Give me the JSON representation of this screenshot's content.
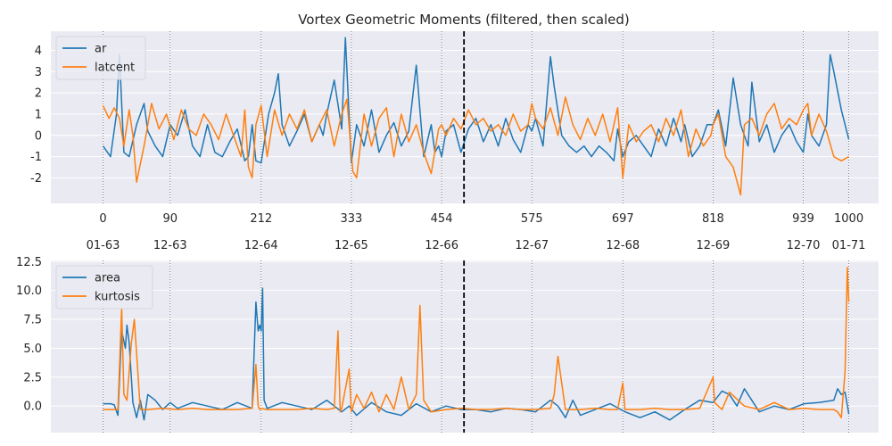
{
  "chart_data": [
    {
      "type": "line",
      "title": "Vortex Geometric Moments (filtered, then scaled)",
      "xlim": [
        -70,
        1040
      ],
      "ylim": [
        -3.2,
        4.9
      ],
      "yticks": [
        -2,
        -1,
        0,
        1,
        2,
        3,
        4
      ],
      "xticks": [
        {
          "x": 0,
          "label": "0"
        },
        {
          "x": 90,
          "label": "90"
        },
        {
          "x": 212,
          "label": "212"
        },
        {
          "x": 333,
          "label": "333"
        },
        {
          "x": 454,
          "label": "454"
        },
        {
          "x": 575,
          "label": "575"
        },
        {
          "x": 697,
          "label": "697"
        },
        {
          "x": 818,
          "label": "818"
        },
        {
          "x": 939,
          "label": "939"
        },
        {
          "x": 1000,
          "label": "1000"
        }
      ],
      "vline_dashed_x": 484,
      "grid": true,
      "legend_position": "upper-left",
      "series": [
        {
          "name": "ar",
          "color": "#1f77b4",
          "x": [
            0,
            10,
            18,
            22,
            28,
            35,
            45,
            55,
            60,
            70,
            80,
            90,
            100,
            110,
            120,
            130,
            140,
            150,
            160,
            170,
            180,
            190,
            195,
            200,
            205,
            212,
            222,
            230,
            235,
            240,
            250,
            260,
            270,
            280,
            290,
            295,
            300,
            310,
            320,
            325,
            333,
            340,
            350,
            360,
            370,
            380,
            390,
            400,
            410,
            420,
            430,
            440,
            445,
            450,
            454,
            460,
            470,
            480,
            490,
            500,
            510,
            520,
            530,
            540,
            550,
            560,
            570,
            575,
            580,
            590,
            600,
            605,
            615,
            625,
            635,
            645,
            655,
            665,
            675,
            685,
            690,
            697,
            705,
            715,
            725,
            735,
            745,
            755,
            765,
            775,
            780,
            790,
            800,
            810,
            818,
            825,
            835,
            845,
            855,
            865,
            870,
            880,
            890,
            900,
            910,
            920,
            930,
            939,
            945,
            950,
            960,
            970,
            975,
            980,
            990,
            1000
          ],
          "y": [
            -0.5,
            -1.0,
            1.0,
            3.8,
            -0.8,
            -1.0,
            0.5,
            1.5,
            0.2,
            -0.5,
            -1.0,
            0.5,
            0.0,
            1.2,
            -0.5,
            -1.0,
            0.5,
            -0.8,
            -1.0,
            -0.3,
            0.3,
            -1.2,
            -1.0,
            0.5,
            -1.2,
            -1.3,
            1.0,
            2.0,
            2.9,
            0.5,
            -0.5,
            0.2,
            1.0,
            -0.3,
            0.5,
            0.0,
            1.0,
            2.6,
            0.3,
            4.6,
            -1.3,
            0.5,
            -0.5,
            1.2,
            -0.8,
            0.0,
            0.6,
            -0.5,
            0.2,
            3.3,
            -1.0,
            0.5,
            -0.8,
            -0.5,
            -1.0,
            0.2,
            0.5,
            -0.8,
            0.3,
            0.8,
            -0.3,
            0.5,
            -0.5,
            0.8,
            -0.2,
            -0.8,
            0.5,
            0.2,
            0.8,
            -0.5,
            3.7,
            2.3,
            0.0,
            -0.5,
            -0.8,
            -0.5,
            -1.0,
            -0.5,
            -0.8,
            -1.2,
            0.3,
            -1.0,
            -0.3,
            0.0,
            -0.5,
            -1.0,
            0.3,
            -0.5,
            0.8,
            -0.3,
            0.5,
            -1.0,
            -0.5,
            0.5,
            0.5,
            1.2,
            -0.5,
            2.7,
            0.5,
            -0.5,
            2.5,
            -0.3,
            0.5,
            -0.8,
            0.0,
            0.5,
            -0.3,
            -0.8,
            1.0,
            0.0,
            -0.5,
            0.5,
            3.8,
            3.0,
            1.2,
            -0.2
          ]
        },
        {
          "name": "latcent",
          "color": "#ff7f0e",
          "x": [
            0,
            8,
            15,
            22,
            28,
            35,
            40,
            45,
            55,
            65,
            75,
            85,
            95,
            105,
            115,
            125,
            135,
            145,
            155,
            165,
            175,
            185,
            190,
            195,
            200,
            205,
            212,
            220,
            230,
            240,
            250,
            260,
            270,
            280,
            290,
            300,
            310,
            320,
            327,
            335,
            340,
            350,
            360,
            370,
            380,
            390,
            400,
            410,
            420,
            430,
            440,
            450,
            454,
            460,
            470,
            480,
            490,
            500,
            510,
            520,
            530,
            540,
            550,
            560,
            570,
            575,
            580,
            590,
            600,
            610,
            620,
            630,
            640,
            650,
            660,
            670,
            680,
            690,
            697,
            705,
            715,
            725,
            735,
            745,
            755,
            765,
            775,
            785,
            795,
            805,
            815,
            818,
            825,
            835,
            845,
            855,
            860,
            870,
            880,
            890,
            900,
            910,
            920,
            930,
            939,
            945,
            950,
            960,
            970,
            980,
            990,
            1000
          ],
          "y": [
            1.4,
            0.8,
            1.3,
            0.8,
            -0.5,
            1.2,
            0.0,
            -2.2,
            -0.5,
            1.5,
            0.3,
            1.0,
            -0.2,
            1.2,
            0.3,
            0.0,
            1.0,
            0.5,
            -0.2,
            1.0,
            0.0,
            -1.0,
            1.2,
            -1.5,
            -2.0,
            0.5,
            1.4,
            -1.0,
            1.2,
            0.0,
            1.0,
            0.3,
            1.2,
            -0.3,
            0.5,
            1.2,
            -0.5,
            1.0,
            1.7,
            -1.7,
            -2.0,
            1.0,
            -0.5,
            0.8,
            1.3,
            -1.0,
            1.0,
            -0.3,
            0.5,
            -0.8,
            -1.8,
            0.3,
            0.5,
            0.0,
            0.8,
            0.3,
            1.2,
            0.5,
            0.8,
            0.2,
            0.5,
            0.0,
            1.0,
            0.2,
            0.5,
            1.5,
            0.8,
            0.3,
            1.3,
            0.0,
            1.8,
            0.5,
            -0.2,
            0.8,
            0.0,
            1.0,
            -0.3,
            1.3,
            -2.0,
            0.5,
            -0.3,
            0.2,
            0.5,
            -0.3,
            0.8,
            0.0,
            1.2,
            -1.0,
            0.3,
            -0.5,
            0.0,
            0.5,
            1.0,
            -1.0,
            -1.5,
            -2.8,
            0.5,
            0.8,
            0.0,
            1.0,
            1.5,
            0.3,
            0.8,
            0.5,
            1.2,
            1.5,
            0.0,
            1.0,
            0.2,
            -1.0,
            -1.2,
            -1.0
          ]
        }
      ]
    },
    {
      "type": "line",
      "xlim": [
        -70,
        1040
      ],
      "ylim": [
        -2.3,
        12.6
      ],
      "yticks": [
        0.0,
        2.5,
        5.0,
        7.5,
        10.0,
        12.5
      ],
      "ytick_labels": [
        "0.0",
        "2.5",
        "5.0",
        "7.5",
        "10.0",
        "12.5"
      ],
      "xticks": [
        {
          "x": 0,
          "label": "01-63"
        },
        {
          "x": 90,
          "label": "12-63"
        },
        {
          "x": 212,
          "label": "12-64"
        },
        {
          "x": 333,
          "label": "12-65"
        },
        {
          "x": 454,
          "label": "12-66"
        },
        {
          "x": 575,
          "label": "12-67"
        },
        {
          "x": 697,
          "label": "12-68"
        },
        {
          "x": 818,
          "label": "12-69"
        },
        {
          "x": 939,
          "label": "12-70"
        },
        {
          "x": 1000,
          "label": "01-71"
        }
      ],
      "vline_dashed_x": 484,
      "grid": true,
      "legend_position": "upper-left",
      "series": [
        {
          "name": "area",
          "color": "#1f77b4",
          "x": [
            0,
            10,
            15,
            20,
            25,
            30,
            32,
            35,
            40,
            45,
            50,
            55,
            60,
            70,
            80,
            90,
            100,
            120,
            140,
            160,
            180,
            200,
            205,
            208,
            210,
            212,
            214,
            216,
            220,
            240,
            260,
            280,
            300,
            320,
            330,
            340,
            360,
            380,
            400,
            420,
            440,
            460,
            480,
            500,
            520,
            540,
            560,
            580,
            600,
            610,
            620,
            630,
            640,
            660,
            680,
            700,
            720,
            740,
            760,
            780,
            800,
            818,
            830,
            840,
            850,
            860,
            880,
            900,
            920,
            940,
            960,
            980,
            985,
            990,
            995,
            1000
          ],
          "y": [
            0.2,
            0.2,
            0.1,
            -0.8,
            6.5,
            5.0,
            7.0,
            5.5,
            0.3,
            -1.0,
            0.5,
            -1.2,
            1.0,
            0.5,
            -0.3,
            0.3,
            -0.2,
            0.3,
            0.0,
            -0.3,
            0.3,
            -0.2,
            9.0,
            6.5,
            7.0,
            6.5,
            10.2,
            0.5,
            -0.2,
            0.3,
            0.0,
            -0.3,
            0.5,
            -0.5,
            0.0,
            -0.8,
            0.3,
            -0.5,
            -0.8,
            0.2,
            -0.5,
            0.0,
            -0.3,
            -0.3,
            -0.5,
            -0.2,
            -0.3,
            -0.5,
            0.5,
            0.0,
            -1.0,
            0.5,
            -0.8,
            -0.3,
            0.2,
            -0.5,
            -1.0,
            -0.5,
            -1.2,
            -0.3,
            0.5,
            0.3,
            1.3,
            1.0,
            0.0,
            1.5,
            -0.5,
            0.0,
            -0.3,
            0.2,
            0.3,
            0.5,
            1.5,
            1.0,
            1.2,
            -0.7
          ]
        },
        {
          "name": "kurtosis",
          "color": "#ff7f0e",
          "x": [
            0,
            20,
            25,
            28,
            32,
            38,
            42,
            50,
            60,
            80,
            100,
            120,
            140,
            160,
            180,
            200,
            205,
            208,
            210,
            212,
            220,
            240,
            260,
            280,
            300,
            310,
            315,
            318,
            320,
            330,
            333,
            340,
            350,
            360,
            370,
            380,
            390,
            400,
            410,
            420,
            425,
            430,
            440,
            460,
            480,
            500,
            520,
            540,
            560,
            580,
            600,
            605,
            610,
            620,
            640,
            660,
            680,
            690,
            697,
            700,
            720,
            740,
            760,
            780,
            800,
            818,
            820,
            830,
            840,
            860,
            880,
            900,
            920,
            940,
            960,
            980,
            985,
            990,
            995,
            998,
            1000
          ],
          "y": [
            -0.3,
            -0.3,
            8.5,
            1.0,
            0.5,
            5.5,
            7.5,
            -0.3,
            -0.3,
            -0.2,
            -0.3,
            -0.2,
            -0.3,
            -0.3,
            -0.3,
            -0.2,
            3.6,
            0.0,
            -0.3,
            -0.2,
            -0.3,
            -0.3,
            -0.3,
            -0.2,
            -0.3,
            -0.2,
            6.5,
            -0.5,
            -0.2,
            3.2,
            -0.5,
            1.0,
            -0.2,
            1.2,
            -0.5,
            1.0,
            -0.3,
            2.5,
            -0.3,
            1.0,
            8.7,
            0.5,
            -0.5,
            -0.3,
            -0.2,
            -0.3,
            -0.3,
            -0.2,
            -0.3,
            -0.3,
            -0.2,
            1.0,
            4.3,
            -0.3,
            -0.3,
            -0.2,
            -0.3,
            -0.3,
            2.0,
            -0.3,
            -0.3,
            -0.2,
            -0.3,
            -0.3,
            -0.2,
            2.5,
            0.3,
            -0.3,
            1.2,
            0.0,
            -0.3,
            0.3,
            -0.3,
            -0.2,
            -0.3,
            -0.3,
            -0.5,
            -1.0,
            3.0,
            12.0,
            9.0
          ]
        }
      ]
    }
  ]
}
